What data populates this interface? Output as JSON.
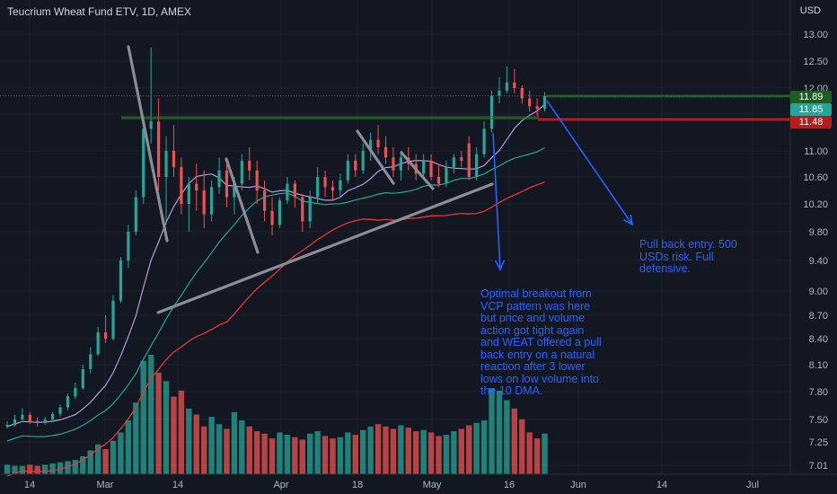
{
  "header": {
    "title": "Teucrium Wheat Fund ETV, 1D, AMEX",
    "currency": "USD"
  },
  "price_axis": {
    "ticks": [
      "13.00",
      "12.50",
      "12.00",
      "11.50",
      "11.00",
      "10.60",
      "10.20",
      "9.80",
      "9.40",
      "9.00",
      "8.70",
      "8.40",
      "8.10",
      "7.80",
      "7.50",
      "7.25",
      "7.01"
    ],
    "tick_values": [
      13.0,
      12.5,
      12.0,
      11.5,
      11.0,
      10.6,
      10.2,
      9.8,
      9.4,
      9.0,
      8.7,
      8.4,
      8.1,
      7.8,
      7.5,
      7.25,
      7.01
    ]
  },
  "time_axis": {
    "ticks": [
      "14",
      "Mar",
      "14",
      "Apr",
      "18",
      "May",
      "16",
      "Jun",
      "14",
      "Jul"
    ]
  },
  "price_badges": {
    "target": {
      "label": "11.89",
      "value": 11.89,
      "color": "#1b5e20"
    },
    "last": {
      "label": "11.85",
      "value": 11.85,
      "color": "#26a69a"
    },
    "stop": {
      "label": "11.48",
      "value": 11.48,
      "color": "#b71c1c"
    }
  },
  "notes": {
    "pullback": "Pull back entry. 500\nUSDs risk. Full\ndefensive.",
    "breakout": "Optimal breakout from\nVCP pattern was here\nbut price and volume\naction got tight again\nand WEAT offered a pull\nback entry on a natural\nreaction after 3 lower\nlows on low volume into\nthe 10 DMA."
  },
  "colors": {
    "up": "#26a69a",
    "down": "#ef5350",
    "ma10": "#b39ddb",
    "ma20": "#26a69a",
    "ma50": "#e53935",
    "drawing": "#8a8d96",
    "annotation": "#2962ff",
    "resistance": "#2e7d32"
  },
  "chart_data": {
    "type": "candlestick",
    "ticker": "WEAT",
    "timeframe": "1D",
    "ylim": [
      6.95,
      13.2
    ],
    "ohlc": [
      [
        7.42,
        7.48,
        7.4,
        7.44
      ],
      [
        7.44,
        7.55,
        7.42,
        7.5
      ],
      [
        7.5,
        7.62,
        7.47,
        7.55
      ],
      [
        7.55,
        7.58,
        7.45,
        7.48
      ],
      [
        7.48,
        7.52,
        7.42,
        7.47
      ],
      [
        7.47,
        7.53,
        7.44,
        7.5
      ],
      [
        7.5,
        7.58,
        7.48,
        7.56
      ],
      [
        7.56,
        7.66,
        7.53,
        7.63
      ],
      [
        7.63,
        7.78,
        7.6,
        7.75
      ],
      [
        7.75,
        7.9,
        7.72,
        7.84
      ],
      [
        7.84,
        8.1,
        7.82,
        8.05
      ],
      [
        8.05,
        8.3,
        8.0,
        8.22
      ],
      [
        8.22,
        8.55,
        8.2,
        8.48
      ],
      [
        8.48,
        8.7,
        8.35,
        8.4
      ],
      [
        8.4,
        8.95,
        8.38,
        8.88
      ],
      [
        8.88,
        9.45,
        8.85,
        9.4
      ],
      [
        9.4,
        9.9,
        9.3,
        9.8
      ],
      [
        9.8,
        10.4,
        9.75,
        10.3
      ],
      [
        10.3,
        11.4,
        10.2,
        11.3
      ],
      [
        11.3,
        12.75,
        11.1,
        11.4
      ],
      [
        11.4,
        11.8,
        10.4,
        10.6
      ],
      [
        10.6,
        11.2,
        9.9,
        11.0
      ],
      [
        11.0,
        11.35,
        10.6,
        10.75
      ],
      [
        10.75,
        10.9,
        10.05,
        10.2
      ],
      [
        10.2,
        10.6,
        9.8,
        10.5
      ],
      [
        10.5,
        10.8,
        10.1,
        10.4
      ],
      [
        10.4,
        10.7,
        9.85,
        10.05
      ],
      [
        10.05,
        10.55,
        9.95,
        10.45
      ],
      [
        10.45,
        10.9,
        10.35,
        10.7
      ],
      [
        10.7,
        10.85,
        10.15,
        10.3
      ],
      [
        10.3,
        10.6,
        10.05,
        10.5
      ],
      [
        10.5,
        10.95,
        10.4,
        10.85
      ],
      [
        10.85,
        11.05,
        10.55,
        10.7
      ],
      [
        10.7,
        10.85,
        10.2,
        10.4
      ],
      [
        10.4,
        10.55,
        9.95,
        10.1
      ],
      [
        10.1,
        10.3,
        9.75,
        9.9
      ],
      [
        9.9,
        10.3,
        9.85,
        10.25
      ],
      [
        10.25,
        10.6,
        10.2,
        10.5
      ],
      [
        10.5,
        10.55,
        10.15,
        10.3
      ],
      [
        10.3,
        10.35,
        9.8,
        9.95
      ],
      [
        9.95,
        10.4,
        9.85,
        10.3
      ],
      [
        10.3,
        10.75,
        10.2,
        10.6
      ],
      [
        10.6,
        10.7,
        10.3,
        10.45
      ],
      [
        10.45,
        10.55,
        10.25,
        10.4
      ],
      [
        10.4,
        10.65,
        10.3,
        10.55
      ],
      [
        10.55,
        10.95,
        10.5,
        10.85
      ],
      [
        10.85,
        10.95,
        10.6,
        10.7
      ],
      [
        10.7,
        11.1,
        10.65,
        11.0
      ],
      [
        11.0,
        11.25,
        10.85,
        11.15
      ],
      [
        11.15,
        11.35,
        10.95,
        11.05
      ],
      [
        11.05,
        11.2,
        10.8,
        10.9
      ],
      [
        10.9,
        11.05,
        10.6,
        10.7
      ],
      [
        10.7,
        11.0,
        10.55,
        10.9
      ],
      [
        10.9,
        11.05,
        10.7,
        10.8
      ],
      [
        10.8,
        10.95,
        10.55,
        10.65
      ],
      [
        10.65,
        10.95,
        10.6,
        10.85
      ],
      [
        10.85,
        10.95,
        10.55,
        10.6
      ],
      [
        10.6,
        10.8,
        10.45,
        10.5
      ],
      [
        10.5,
        10.85,
        10.45,
        10.75
      ],
      [
        10.75,
        10.95,
        10.65,
        10.9
      ],
      [
        10.9,
        11.0,
        10.75,
        10.85
      ],
      [
        11.1,
        11.2,
        10.55,
        10.6
      ],
      [
        10.6,
        11.05,
        10.55,
        10.95
      ],
      [
        10.95,
        11.4,
        10.9,
        11.3
      ],
      [
        11.3,
        11.95,
        11.25,
        11.85
      ],
      [
        11.85,
        12.2,
        11.7,
        11.95
      ],
      [
        11.95,
        12.4,
        11.9,
        12.1
      ],
      [
        12.1,
        12.35,
        11.9,
        12.0
      ],
      [
        12.0,
        12.05,
        11.7,
        11.8
      ],
      [
        11.8,
        11.95,
        11.55,
        11.65
      ],
      [
        11.65,
        11.8,
        11.48,
        11.6
      ],
      [
        11.6,
        11.92,
        11.55,
        11.85
      ]
    ],
    "volume": [
      0.08,
      0.07,
      0.07,
      0.08,
      0.07,
      0.08,
      0.09,
      0.1,
      0.11,
      0.12,
      0.15,
      0.2,
      0.25,
      0.21,
      0.28,
      0.35,
      0.45,
      0.6,
      0.95,
      1.0,
      0.85,
      0.78,
      0.65,
      0.7,
      0.55,
      0.5,
      0.4,
      0.48,
      0.42,
      0.38,
      0.52,
      0.45,
      0.4,
      0.36,
      0.34,
      0.3,
      0.35,
      0.33,
      0.31,
      0.29,
      0.34,
      0.36,
      0.32,
      0.3,
      0.31,
      0.35,
      0.33,
      0.37,
      0.4,
      0.42,
      0.4,
      0.38,
      0.41,
      0.39,
      0.36,
      0.37,
      0.35,
      0.32,
      0.33,
      0.36,
      0.38,
      0.41,
      0.43,
      0.45,
      0.72,
      0.7,
      0.62,
      0.55,
      0.46,
      0.35,
      0.3,
      0.34
    ]
  }
}
